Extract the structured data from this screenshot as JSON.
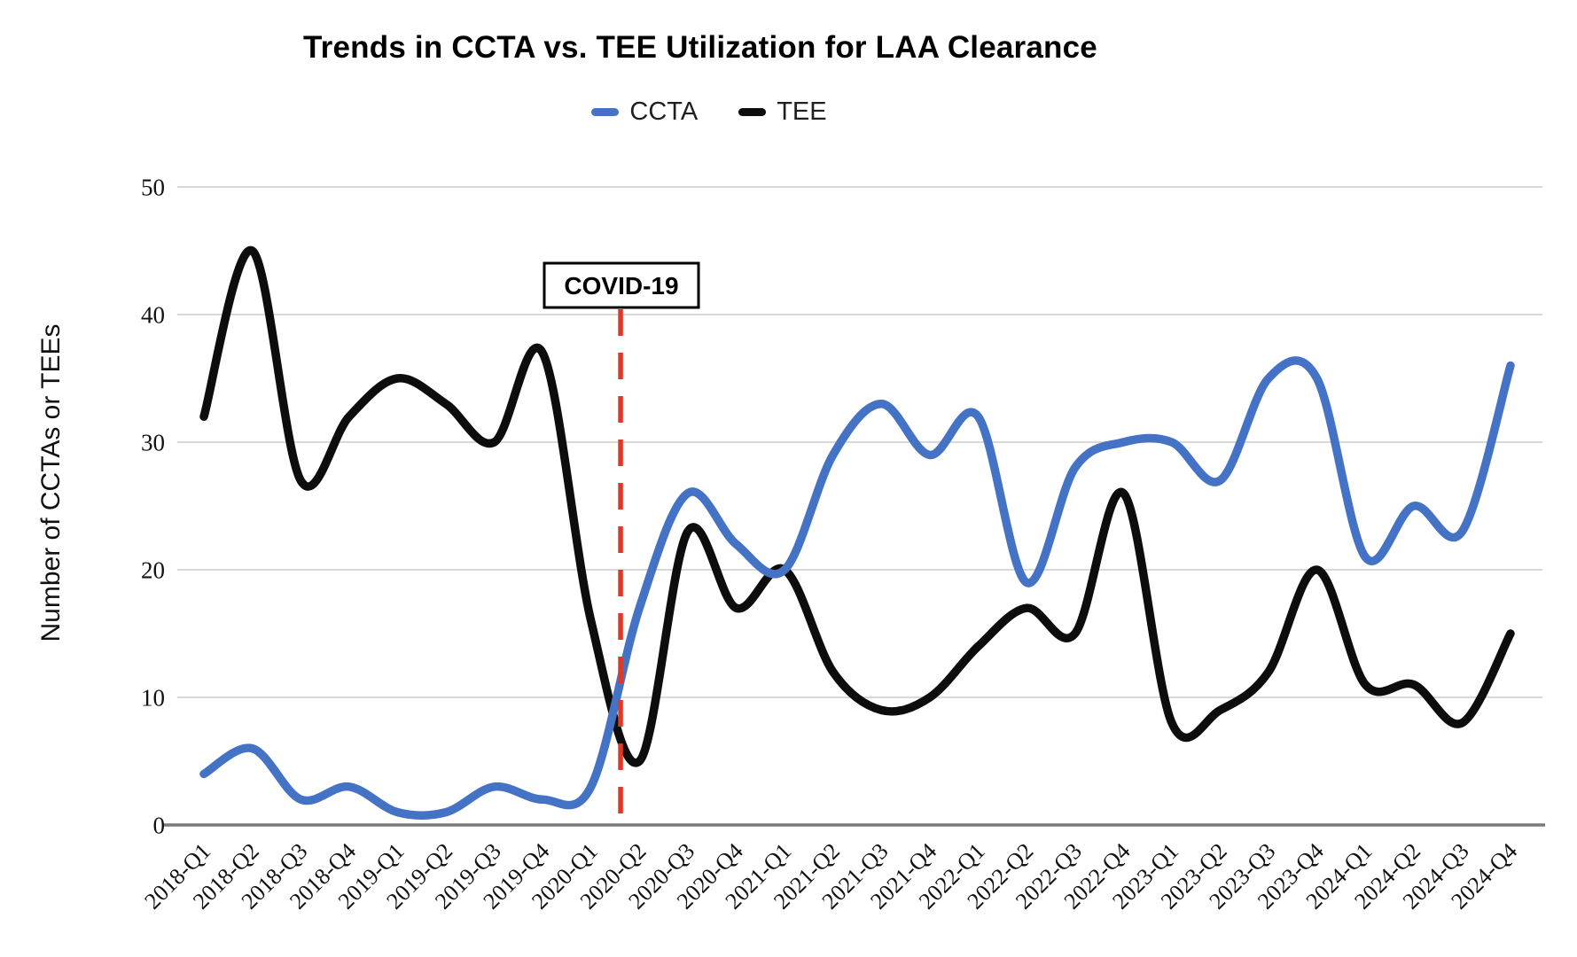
{
  "chart_data": {
    "type": "line",
    "title": "Trends in CCTA vs. TEE Utilization for LAA Clearance",
    "xlabel": "",
    "ylabel": "Number of CCTAs or TEEs",
    "ylim": [
      0,
      50
    ],
    "yticks": [
      0,
      10,
      20,
      30,
      40,
      50
    ],
    "grid": "horizontal",
    "legend_position": "top-center",
    "line_style": "smooth-spline",
    "categories": [
      "2018-Q1",
      "2018-Q2",
      "2018-Q3",
      "2018-Q4",
      "2019-Q1",
      "2019-Q2",
      "2019-Q3",
      "2019-Q4",
      "2020-Q1",
      "2020-Q2",
      "2020-Q3",
      "2020-Q4",
      "2021-Q1",
      "2021-Q2",
      "2021-Q3",
      "2021-Q4",
      "2022-Q1",
      "2022-Q2",
      "2022-Q3",
      "2022-Q4",
      "2023-Q1",
      "2023-Q2",
      "2023-Q3",
      "2023-Q4",
      "2024-Q1",
      "2024-Q2",
      "2024-Q3",
      "2024-Q4"
    ],
    "series": [
      {
        "name": "CCTA",
        "color": "#4472C4",
        "values": [
          4,
          6,
          2,
          3,
          1,
          1,
          3,
          2,
          3,
          17,
          26,
          22,
          20,
          29,
          33,
          29,
          32,
          19,
          28,
          30,
          30,
          27,
          35,
          35,
          21,
          25,
          23,
          36
        ]
      },
      {
        "name": "TEE",
        "color": "#0D0D0D",
        "values": [
          32,
          45,
          27,
          32,
          35,
          33,
          30,
          37,
          16,
          5,
          23,
          17,
          20,
          12,
          9,
          10,
          14,
          17,
          15,
          26,
          8,
          9,
          12,
          20,
          11,
          11,
          8,
          15
        ]
      }
    ],
    "annotations": [
      {
        "label": "COVID-19",
        "type": "vertical-dashed-line",
        "between_categories": [
          "2020-Q1",
          "2020-Q2"
        ],
        "category_index": 8.61,
        "color": "#DE3826"
      }
    ]
  },
  "colors": {
    "gridline": "#D9D9D9",
    "axis_line": "#7A7A7A",
    "ccta_line": "#4472C4",
    "tee_line": "#0D0D0D",
    "covid_line": "#DE3826"
  }
}
